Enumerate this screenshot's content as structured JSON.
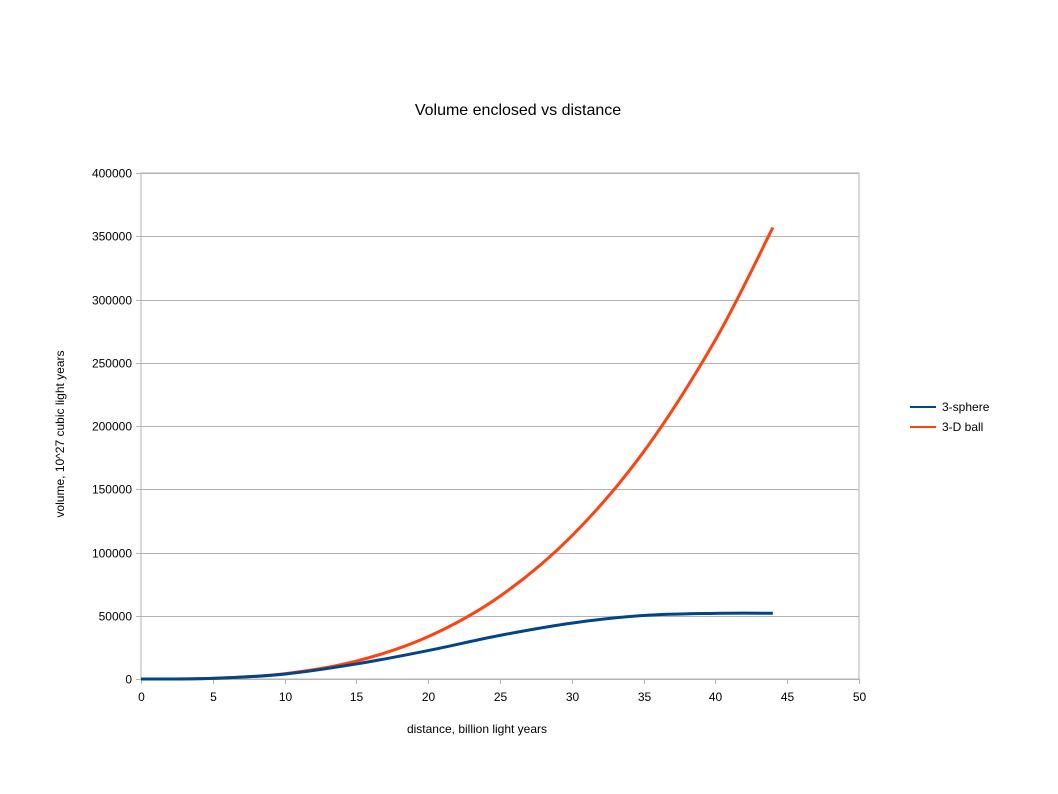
{
  "chart_data": {
    "type": "line",
    "title": "Volume enclosed vs distance",
    "xlabel": "distance, billion light years",
    "ylabel": "volume, 10^27 cubic light years",
    "xlim": [
      0,
      50
    ],
    "ylim": [
      0,
      400000
    ],
    "x_ticks": [
      0,
      5,
      10,
      15,
      20,
      25,
      30,
      35,
      40,
      45,
      50
    ],
    "y_ticks": [
      0,
      50000,
      100000,
      150000,
      200000,
      250000,
      300000,
      350000,
      400000
    ],
    "grid": "horizontal",
    "legend_position": "right",
    "x": [
      0,
      5,
      10,
      15,
      20,
      25,
      30,
      35,
      40,
      44
    ],
    "series": [
      {
        "name": "3-sphere",
        "color": "#004586",
        "values": [
          0,
          520,
          3900,
          11900,
          22500,
          34500,
          44200,
          50200,
          51900,
          52000
        ]
      },
      {
        "name": "3-D ball",
        "color": "#ff420e",
        "values": [
          0,
          520,
          4190,
          14140,
          33510,
          65450,
          113100,
          179590,
          268080,
          356820
        ]
      }
    ]
  }
}
